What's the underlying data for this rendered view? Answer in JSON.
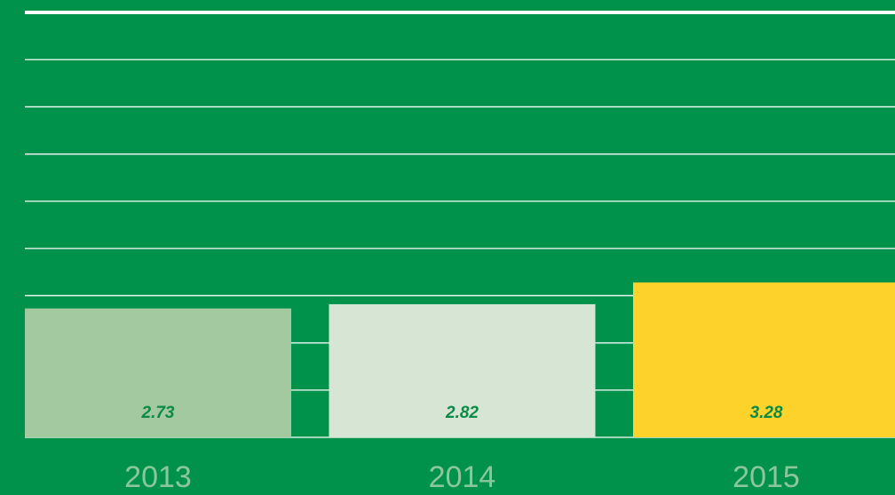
{
  "chart_data": {
    "type": "bar",
    "categories": [
      "2013",
      "2014",
      "2015"
    ],
    "values": [
      2.73,
      2.82,
      3.28
    ],
    "colors": [
      "#a3c9a0",
      "#d6e5d4",
      "#fdd22a"
    ],
    "ylim": [
      0,
      9
    ],
    "yticks": [
      0,
      1,
      2,
      3,
      4,
      5,
      6,
      7,
      8,
      9
    ],
    "grid": true
  }
}
